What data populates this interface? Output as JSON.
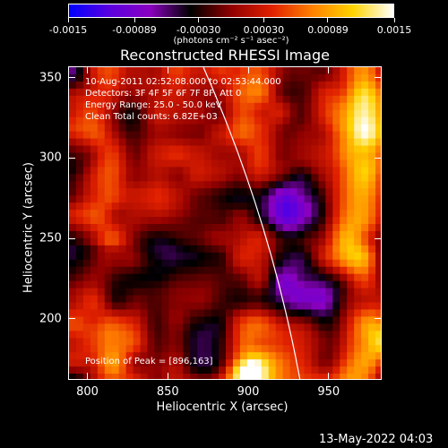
{
  "colorbar": {
    "gradient": [
      "#0000ff",
      "#5a00e0",
      "#8a00c0",
      "#000000",
      "#900000",
      "#e02000",
      "#ff8000",
      "#ffd400",
      "#ffffff"
    ],
    "ticks": [
      {
        "value": -0.0015,
        "label": "-0.0015"
      },
      {
        "value": -0.00089,
        "label": "-0.00089"
      },
      {
        "value": -0.0003,
        "label": "-0.00030"
      },
      {
        "value": 0.0003,
        "label": "0.00030"
      },
      {
        "value": 0.00089,
        "label": "0.00089"
      },
      {
        "value": 0.0015,
        "label": "0.0015"
      }
    ],
    "units": "(photons cm⁻² s⁻¹ asec⁻²)"
  },
  "plot": {
    "title": "Reconstructed RHESSI Image",
    "time_range": "10-Aug-2011 02:52:08.000 to 02:53:44.000",
    "detectors": "Detectors: 3F 4F 5F 6F 7F 8F, Att 0",
    "energy": "Energy Range: 25.0 - 50.0 keV",
    "method": "Clean     Total counts: 6.82E+03",
    "peak": "Position of Peak = [896,163]",
    "xlabel": "Heliocentric X (arcsec)",
    "ylabel": "Heliocentric Y (arcsec)",
    "xlim": [
      788,
      983
    ],
    "ylim": [
      162,
      357
    ],
    "xticks": [
      {
        "value": 800,
        "label": "800"
      },
      {
        "value": 850,
        "label": "850"
      },
      {
        "value": 900,
        "label": "900"
      },
      {
        "value": 950,
        "label": "950"
      }
    ],
    "yticks": [
      {
        "value": 200,
        "label": "200"
      },
      {
        "value": 250,
        "label": "250"
      },
      {
        "value": 300,
        "label": "300"
      },
      {
        "value": 350,
        "label": "350"
      }
    ],
    "limb_color": "#ffffff"
  },
  "timestamp": "13-May-2022 04:03"
}
